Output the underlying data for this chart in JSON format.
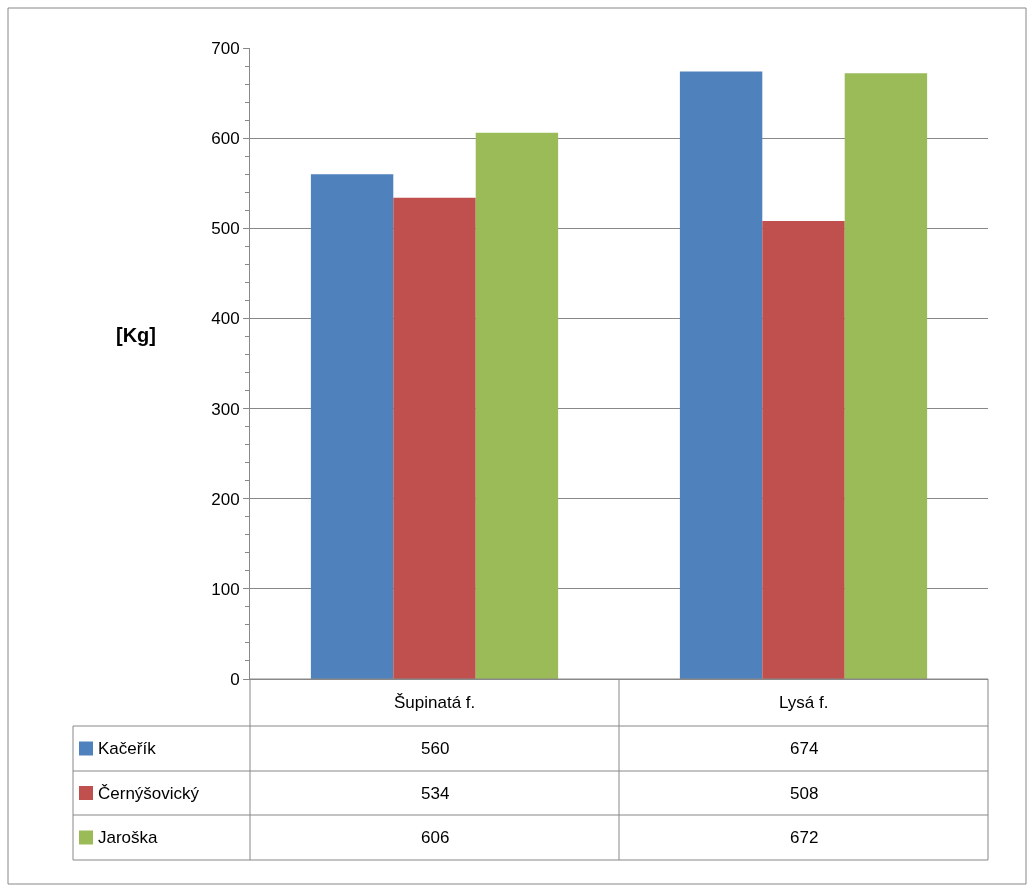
{
  "chart_data": {
    "type": "bar",
    "categories": [
      "Šupinatá f.",
      "Lysá f."
    ],
    "series": [
      {
        "name": "Kačeřík",
        "color": "#4f81bd",
        "values": [
          560,
          674
        ]
      },
      {
        "name": "Černýšovický",
        "color": "#c0504d",
        "values": [
          534,
          508
        ]
      },
      {
        "name": "Jaroška",
        "color": "#9bbb59",
        "values": [
          606,
          672
        ]
      }
    ],
    "ylabel": "[Kg]",
    "ylim": [
      0,
      700
    ],
    "yticks": [
      0,
      100,
      200,
      300,
      400,
      500,
      600,
      700
    ],
    "grid": "y",
    "data_labels": true,
    "legend": "bottom left"
  }
}
